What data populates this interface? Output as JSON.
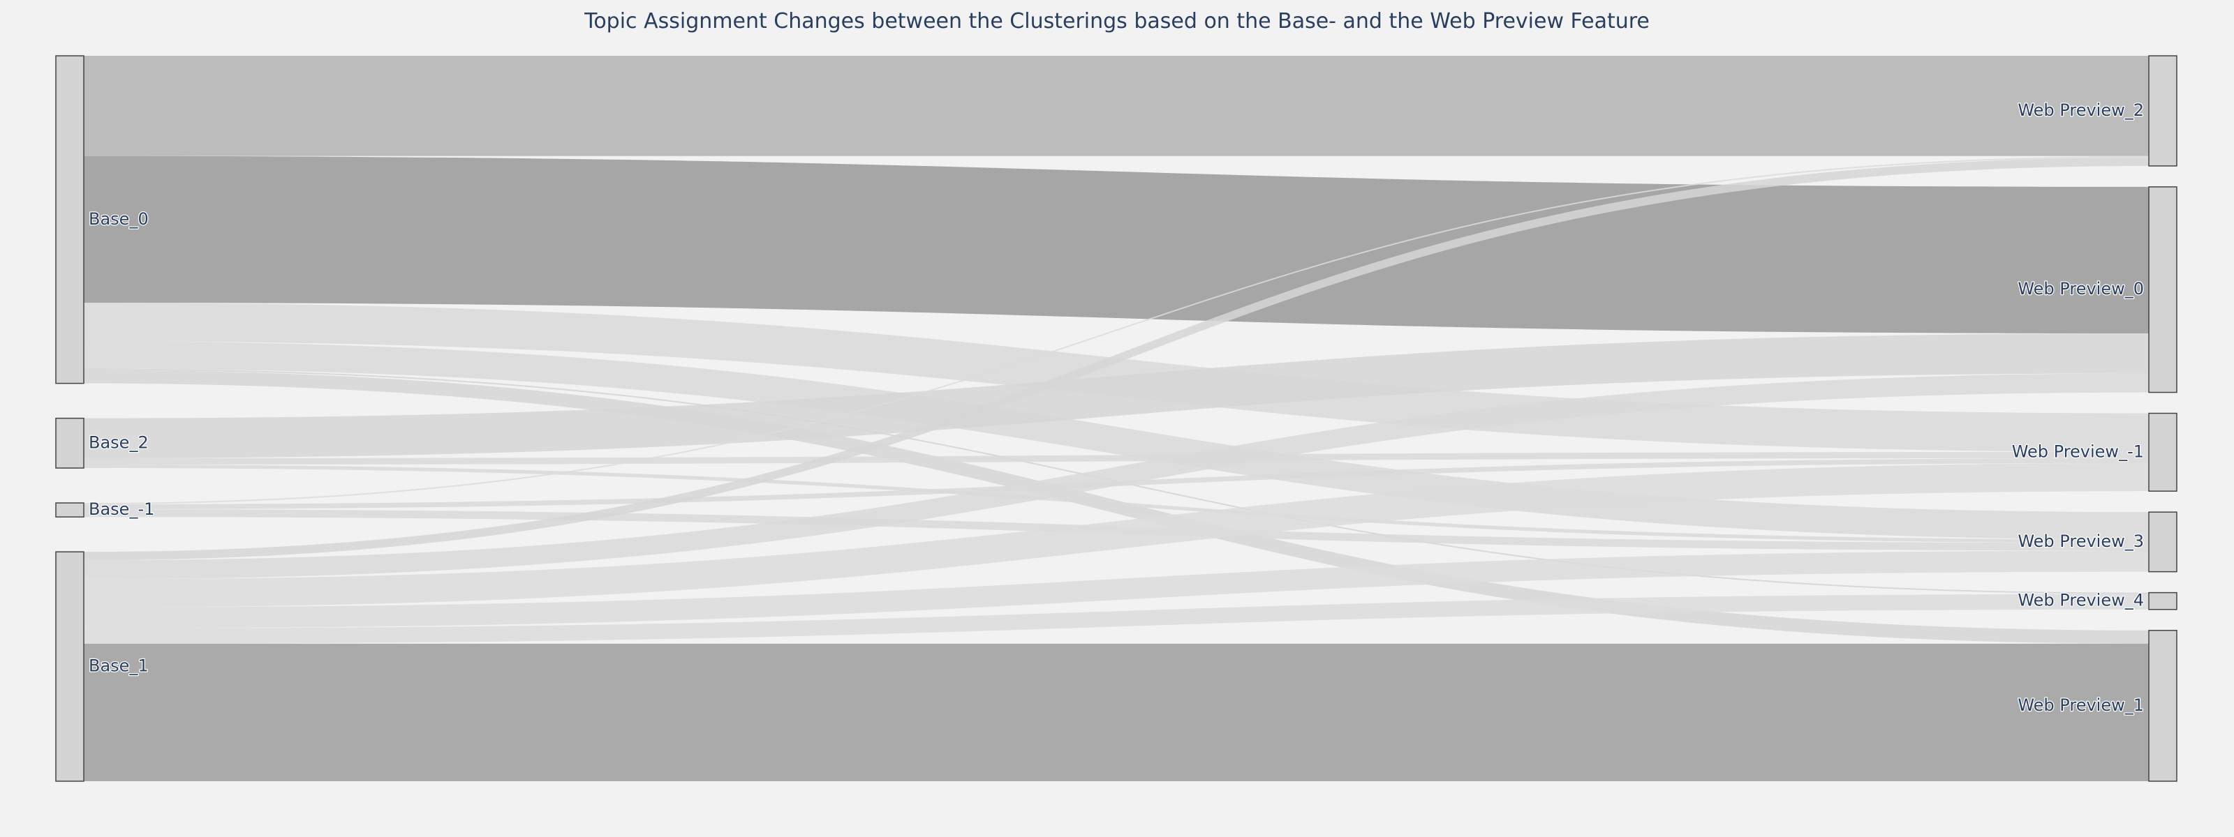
{
  "chart_data": {
    "type": "sankey",
    "title": "Topic Assignment Changes between the Clusterings based on the Base- and the Web Preview Feature",
    "nodes": [
      {
        "id": "b0",
        "label": "Base_0",
        "side": "left"
      },
      {
        "id": "b2",
        "label": "Base_2",
        "side": "left"
      },
      {
        "id": "bm1",
        "label": "Base_-1",
        "side": "left"
      },
      {
        "id": "b1",
        "label": "Base_1",
        "side": "left"
      },
      {
        "id": "w2",
        "label": "Web Preview_2",
        "side": "right"
      },
      {
        "id": "w0",
        "label": "Web Preview_0",
        "side": "right"
      },
      {
        "id": "wm1",
        "label": "Web Preview_-1",
        "side": "right"
      },
      {
        "id": "w3",
        "label": "Web Preview_3",
        "side": "right"
      },
      {
        "id": "w4",
        "label": "Web Preview_4",
        "side": "right"
      },
      {
        "id": "w1",
        "label": "Web Preview_1",
        "side": "right"
      }
    ],
    "links": [
      {
        "source": "b0",
        "target": "w2",
        "value": 143,
        "color": "#b3b3b3"
      },
      {
        "source": "b0",
        "target": "w0",
        "value": 209,
        "color": "#999999"
      },
      {
        "source": "b0",
        "target": "wm1",
        "value": 55,
        "color": "#d9d9d9"
      },
      {
        "source": "b0",
        "target": "w3",
        "value": 39,
        "color": "#d9d9d9"
      },
      {
        "source": "b0",
        "target": "w4",
        "value": 2,
        "color": "#d4d4d4"
      },
      {
        "source": "b0",
        "target": "w1",
        "value": 19,
        "color": "#d6d6d6"
      },
      {
        "source": "b2",
        "target": "w0",
        "value": 57,
        "color": "#d6d6d6"
      },
      {
        "source": "b2",
        "target": "wm1",
        "value": 9,
        "color": "#d9d9d9"
      },
      {
        "source": "b2",
        "target": "w3",
        "value": 5,
        "color": "#d9d9d9"
      },
      {
        "source": "bm1",
        "target": "w2",
        "value": 2,
        "color": "#dcdcdc"
      },
      {
        "source": "bm1",
        "target": "wm1",
        "value": 7,
        "color": "#d9d9d9"
      },
      {
        "source": "bm1",
        "target": "w3",
        "value": 11,
        "color": "#d9d9d9"
      },
      {
        "source": "b1",
        "target": "w2",
        "value": 12,
        "color": "#d6d6d6"
      },
      {
        "source": "b1",
        "target": "w0",
        "value": 27,
        "color": "#d9d9d9"
      },
      {
        "source": "b1",
        "target": "wm1",
        "value": 40,
        "color": "#dcdcdc"
      },
      {
        "source": "b1",
        "target": "w3",
        "value": 30,
        "color": "#dcdcdc"
      },
      {
        "source": "b1",
        "target": "w4",
        "value": 22,
        "color": "#dcdcdc"
      },
      {
        "source": "b1",
        "target": "w1",
        "value": 196,
        "color": "#9e9e9e"
      }
    ],
    "node_color": "#d3d3d3",
    "node_border_color": "#444444",
    "background_color": "#f2f2f2",
    "title_color": "#2a3f5f"
  }
}
